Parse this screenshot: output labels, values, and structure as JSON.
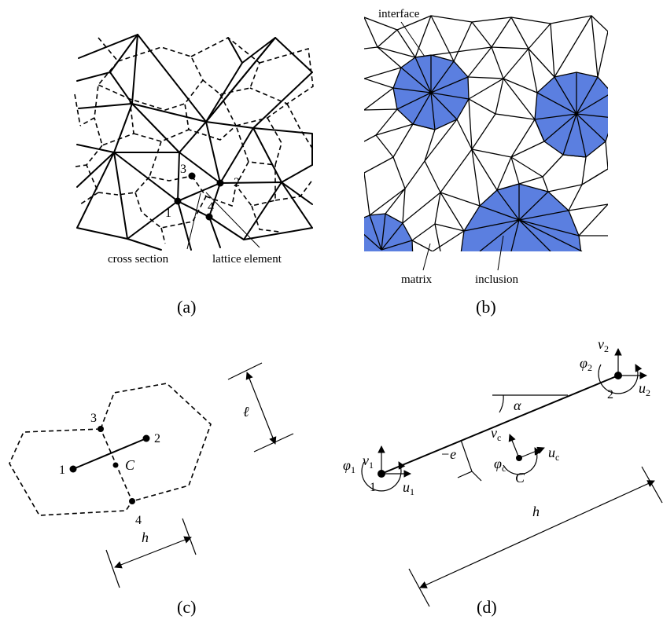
{
  "panel_a": {
    "caption": "(a)",
    "node_labels": [
      "1",
      "2",
      "3",
      "4"
    ],
    "label_cross_section": "cross section",
    "label_lattice_element": "lattice element"
  },
  "panel_b": {
    "caption": "(b)",
    "label_interface": "interface",
    "label_matrix": "matrix",
    "label_inclusion": "inclusion",
    "inclusion_color": "#5b7fe0"
  },
  "panel_c": {
    "caption": "(c)",
    "node_labels": [
      "1",
      "2",
      "3",
      "4"
    ],
    "centroid_label": "C",
    "dim_h": "h",
    "dim_ell": "ℓ"
  },
  "panel_d": {
    "caption": "(d)",
    "node_labels": [
      "1",
      "2"
    ],
    "centroid_label": "C",
    "angle": "α",
    "eccentricity": "−e",
    "length": "h",
    "dof_node1": [
      "v",
      "1",
      "u",
      "1",
      "φ",
      "1"
    ],
    "dof_node2": [
      "v",
      "2",
      "u",
      "2",
      "φ",
      "2"
    ],
    "dof_centroid": [
      "v",
      "c",
      "u",
      "c",
      "φ",
      "c"
    ]
  }
}
